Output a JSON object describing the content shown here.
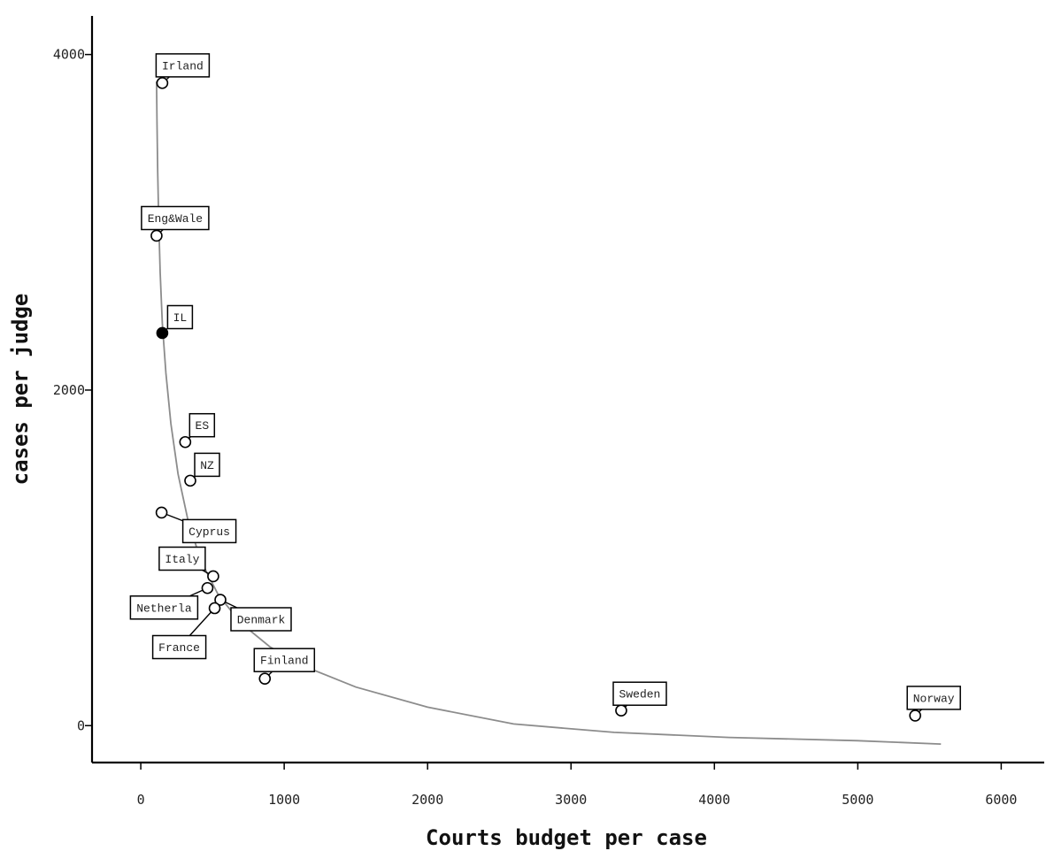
{
  "chart_data": {
    "type": "scatter",
    "title": "",
    "xlabel": "Courts budget per case",
    "ylabel": "cases per judge",
    "xlim": [
      -340,
      6300
    ],
    "ylim": [
      -220,
      4230
    ],
    "xticks": [
      0,
      1000,
      2000,
      3000,
      4000,
      5000,
      6000
    ],
    "yticks": [
      0,
      2000,
      4000
    ],
    "xtick_labels": [
      "0",
      "1000",
      "2000",
      "3000",
      "4000",
      "5000",
      "6000"
    ],
    "ytick_labels": [
      "0",
      "2000",
      "4000"
    ],
    "grid": false,
    "legend": "none",
    "points": [
      {
        "label": "Irland",
        "x": 150,
        "y": 3830,
        "filled": false
      },
      {
        "label": "Eng&Wale",
        "x": 110,
        "y": 2920,
        "filled": false
      },
      {
        "label": "IL",
        "x": 150,
        "y": 2340,
        "filled": true
      },
      {
        "label": "ES",
        "x": 310,
        "y": 1690,
        "filled": false
      },
      {
        "label": "NZ",
        "x": 345,
        "y": 1460,
        "filled": false
      },
      {
        "label": "Cyprus",
        "x": 145,
        "y": 1270,
        "filled": false
      },
      {
        "label": "Italy",
        "x": 505,
        "y": 890,
        "filled": false
      },
      {
        "label": "Netherla",
        "x": 465,
        "y": 820,
        "filled": false
      },
      {
        "label": "Denmark",
        "x": 555,
        "y": 750,
        "filled": false
      },
      {
        "label": "France",
        "x": 515,
        "y": 700,
        "filled": false
      },
      {
        "label": "Finland",
        "x": 865,
        "y": 280,
        "filled": false
      },
      {
        "label": "Sweden",
        "x": 3350,
        "y": 90,
        "filled": false
      },
      {
        "label": "Norway",
        "x": 5400,
        "y": 60,
        "filled": false
      }
    ],
    "fit_curve": {
      "x": [
        110,
        113,
        118,
        125,
        135,
        150,
        175,
        210,
        260,
        330,
        420,
        540,
        700,
        900,
        1150,
        1500,
        2000,
        2600,
        3300,
        4100,
        5000,
        5580
      ],
      "y": [
        3840,
        3600,
        3300,
        3000,
        2700,
        2400,
        2100,
        1800,
        1500,
        1220,
        980,
        780,
        610,
        470,
        350,
        230,
        110,
        10,
        -40,
        -70,
        -90,
        -110
      ]
    },
    "colors": {
      "curve": "#8c8c8c",
      "marker": "#000000",
      "axis": "#000000"
    }
  }
}
